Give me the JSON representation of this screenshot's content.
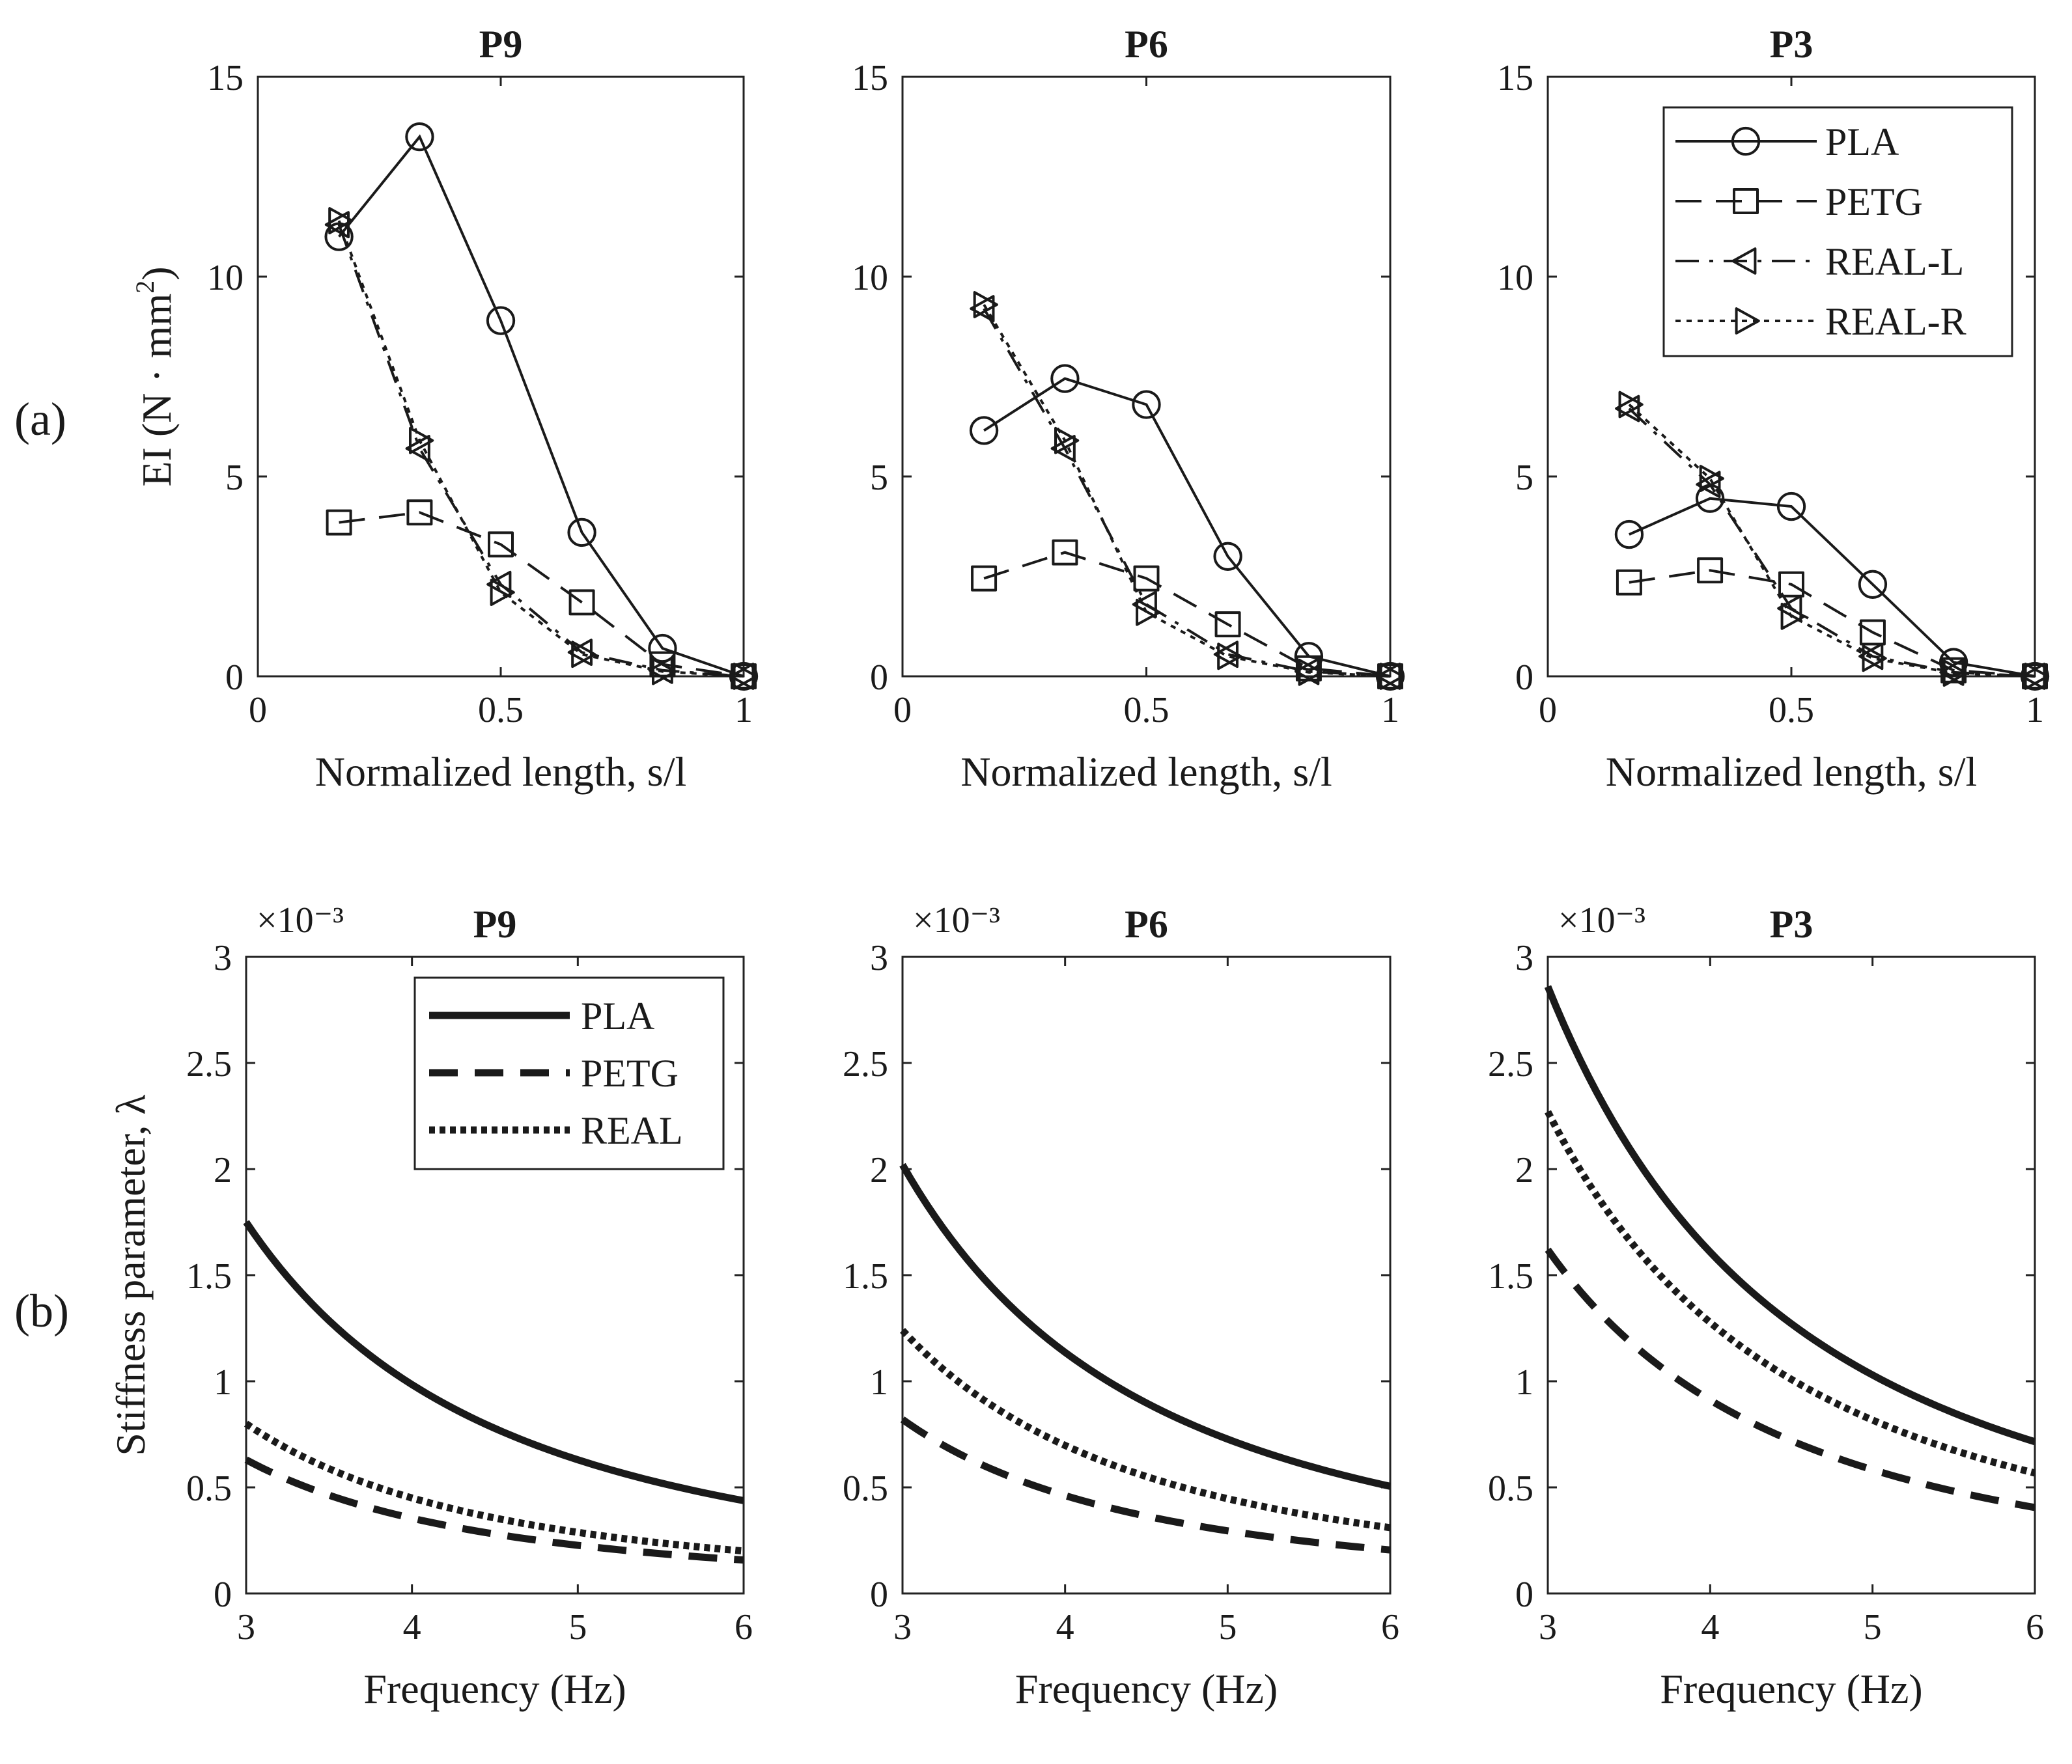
{
  "panel_labels": {
    "a": "(a)",
    "b": "(b)"
  },
  "colors": {
    "ink": "#1a1a1a",
    "ylabel_a": "#3d6b6b"
  },
  "chart_data": [
    {
      "type": "line",
      "panel": "a",
      "title": "P9",
      "xlabel": "Normalized length, s/l",
      "ylabel": "EI (N · mm",
      "ylabel_sup": "2",
      "ylabel_close": ")",
      "xlim": [
        0,
        1
      ],
      "ylim": [
        0,
        15
      ],
      "xticks": [
        0,
        0.5,
        1
      ],
      "xticklabels": [
        "0",
        "0.5",
        "1"
      ],
      "yticks": [
        0,
        5,
        10,
        15
      ],
      "yticklabels": [
        "0",
        "5",
        "10",
        "15"
      ],
      "x": [
        0.167,
        0.333,
        0.5,
        0.667,
        0.833,
        1.0
      ],
      "series": [
        {
          "name": "PLA",
          "values": [
            11.0,
            13.5,
            8.9,
            3.6,
            0.7,
            0.0
          ],
          "style": "solid",
          "marker": "circle"
        },
        {
          "name": "PETG",
          "values": [
            3.85,
            4.1,
            3.3,
            1.85,
            0.3,
            0.0
          ],
          "style": "dashed",
          "marker": "square"
        },
        {
          "name": "REAL-L",
          "values": [
            11.3,
            5.7,
            2.3,
            0.6,
            0.15,
            0.0
          ],
          "style": "dashdot",
          "marker": "triangle-left"
        },
        {
          "name": "REAL-R",
          "values": [
            11.4,
            5.9,
            2.1,
            0.55,
            0.12,
            0.0
          ],
          "style": "dotted",
          "marker": "triangle-right"
        }
      ]
    },
    {
      "type": "line",
      "panel": "a",
      "title": "P6",
      "xlabel": "Normalized length, s/l",
      "xlim": [
        0,
        1
      ],
      "ylim": [
        0,
        15
      ],
      "xticks": [
        0,
        0.5,
        1
      ],
      "xticklabels": [
        "0",
        "0.5",
        "1"
      ],
      "yticks": [
        0,
        5,
        10,
        15
      ],
      "yticklabels": [
        "0",
        "5",
        "10",
        "15"
      ],
      "x": [
        0.167,
        0.333,
        0.5,
        0.667,
        0.833,
        1.0
      ],
      "series": [
        {
          "name": "PLA",
          "values": [
            6.15,
            7.45,
            6.8,
            3.0,
            0.5,
            0.0
          ],
          "style": "solid",
          "marker": "circle"
        },
        {
          "name": "PETG",
          "values": [
            2.45,
            3.1,
            2.45,
            1.3,
            0.2,
            0.0
          ],
          "style": "dashed",
          "marker": "square"
        },
        {
          "name": "REAL-L",
          "values": [
            9.2,
            5.7,
            1.8,
            0.55,
            0.12,
            0.0
          ],
          "style": "dashdot",
          "marker": "triangle-left"
        },
        {
          "name": "REAL-R",
          "values": [
            9.3,
            5.9,
            1.6,
            0.5,
            0.1,
            0.0
          ],
          "style": "dotted",
          "marker": "triangle-right"
        }
      ]
    },
    {
      "type": "line",
      "panel": "a",
      "title": "P3",
      "xlabel": "Normalized length, s/l",
      "xlim": [
        0,
        1
      ],
      "ylim": [
        0,
        15
      ],
      "xticks": [
        0,
        0.5,
        1
      ],
      "xticklabels": [
        "0",
        "0.5",
        "1"
      ],
      "yticks": [
        0,
        5,
        10,
        15
      ],
      "yticklabels": [
        "0",
        "5",
        "10",
        "15"
      ],
      "x": [
        0.167,
        0.333,
        0.5,
        0.667,
        0.833,
        1.0
      ],
      "legend": {
        "entries": [
          "PLA",
          "PETG",
          "REAL-L",
          "REAL-R"
        ],
        "placement": "top-right"
      },
      "series": [
        {
          "name": "PLA",
          "values": [
            3.55,
            4.45,
            4.25,
            2.3,
            0.35,
            0.0
          ],
          "style": "solid",
          "marker": "circle"
        },
        {
          "name": "PETG",
          "values": [
            2.35,
            2.65,
            2.3,
            1.1,
            0.15,
            0.0
          ],
          "style": "dashed",
          "marker": "square"
        },
        {
          "name": "REAL-L",
          "values": [
            6.7,
            4.8,
            1.7,
            0.5,
            0.1,
            0.0
          ],
          "style": "dashdot",
          "marker": "triangle-left"
        },
        {
          "name": "REAL-R",
          "values": [
            6.8,
            4.95,
            1.5,
            0.45,
            0.08,
            0.0
          ],
          "style": "dotted",
          "marker": "triangle-right"
        }
      ]
    },
    {
      "type": "line",
      "panel": "b",
      "title": "P9",
      "xlabel": "Frequency (Hz)",
      "ylabel": "Stiffness parameter, λ",
      "multiplier": "×10⁻³",
      "xlim": [
        3,
        6
      ],
      "ylim": [
        0,
        3
      ],
      "xticks": [
        3,
        4,
        5,
        6
      ],
      "xticklabels": [
        "3",
        "4",
        "5",
        "6"
      ],
      "yticks": [
        0,
        0.5,
        1,
        1.5,
        2,
        2.5,
        3
      ],
      "yticklabels": [
        "0",
        "0.5",
        "1",
        "1.5",
        "2",
        "2.5",
        "3"
      ],
      "legend": {
        "entries": [
          "PLA",
          "PETG",
          "REAL"
        ],
        "placement": "top-right"
      },
      "curve": "lambda(f) = lambda3 * (3/f)^2",
      "series": [
        {
          "name": "PLA",
          "lambda_at_3Hz": 1.75,
          "style": "solid"
        },
        {
          "name": "PETG",
          "lambda_at_3Hz": 0.63,
          "style": "dashed"
        },
        {
          "name": "REAL",
          "lambda_at_3Hz": 0.8,
          "style": "dotted"
        }
      ]
    },
    {
      "type": "line",
      "panel": "b",
      "title": "P6",
      "xlabel": "Frequency (Hz)",
      "multiplier": "×10⁻³",
      "xlim": [
        3,
        6
      ],
      "ylim": [
        0,
        3
      ],
      "xticks": [
        3,
        4,
        5,
        6
      ],
      "xticklabels": [
        "3",
        "4",
        "5",
        "6"
      ],
      "yticks": [
        0,
        0.5,
        1,
        1.5,
        2,
        2.5,
        3
      ],
      "yticklabels": [
        "0",
        "0.5",
        "1",
        "1.5",
        "2",
        "2.5",
        "3"
      ],
      "curve": "lambda(f) = lambda3 * (3/f)^2",
      "series": [
        {
          "name": "PLA",
          "lambda_at_3Hz": 2.02,
          "style": "solid"
        },
        {
          "name": "PETG",
          "lambda_at_3Hz": 0.82,
          "style": "dashed"
        },
        {
          "name": "REAL",
          "lambda_at_3Hz": 1.24,
          "style": "dotted"
        }
      ]
    },
    {
      "type": "line",
      "panel": "b",
      "title": "P3",
      "xlabel": "Frequency (Hz)",
      "multiplier": "×10⁻³",
      "xlim": [
        3,
        6
      ],
      "ylim": [
        0,
        3
      ],
      "xticks": [
        3,
        4,
        5,
        6
      ],
      "xticklabels": [
        "3",
        "4",
        "5",
        "6"
      ],
      "yticks": [
        0,
        0.5,
        1,
        1.5,
        2,
        2.5,
        3
      ],
      "yticklabels": [
        "0",
        "0.5",
        "1",
        "1.5",
        "2",
        "2.5",
        "3"
      ],
      "curve": "lambda(f) = lambda3 * (3/f)^2",
      "series": [
        {
          "name": "PLA",
          "lambda_at_3Hz": 2.86,
          "style": "solid"
        },
        {
          "name": "PETG",
          "lambda_at_3Hz": 1.62,
          "style": "dashed"
        },
        {
          "name": "REAL",
          "lambda_at_3Hz": 2.27,
          "style": "dotted"
        }
      ]
    }
  ]
}
